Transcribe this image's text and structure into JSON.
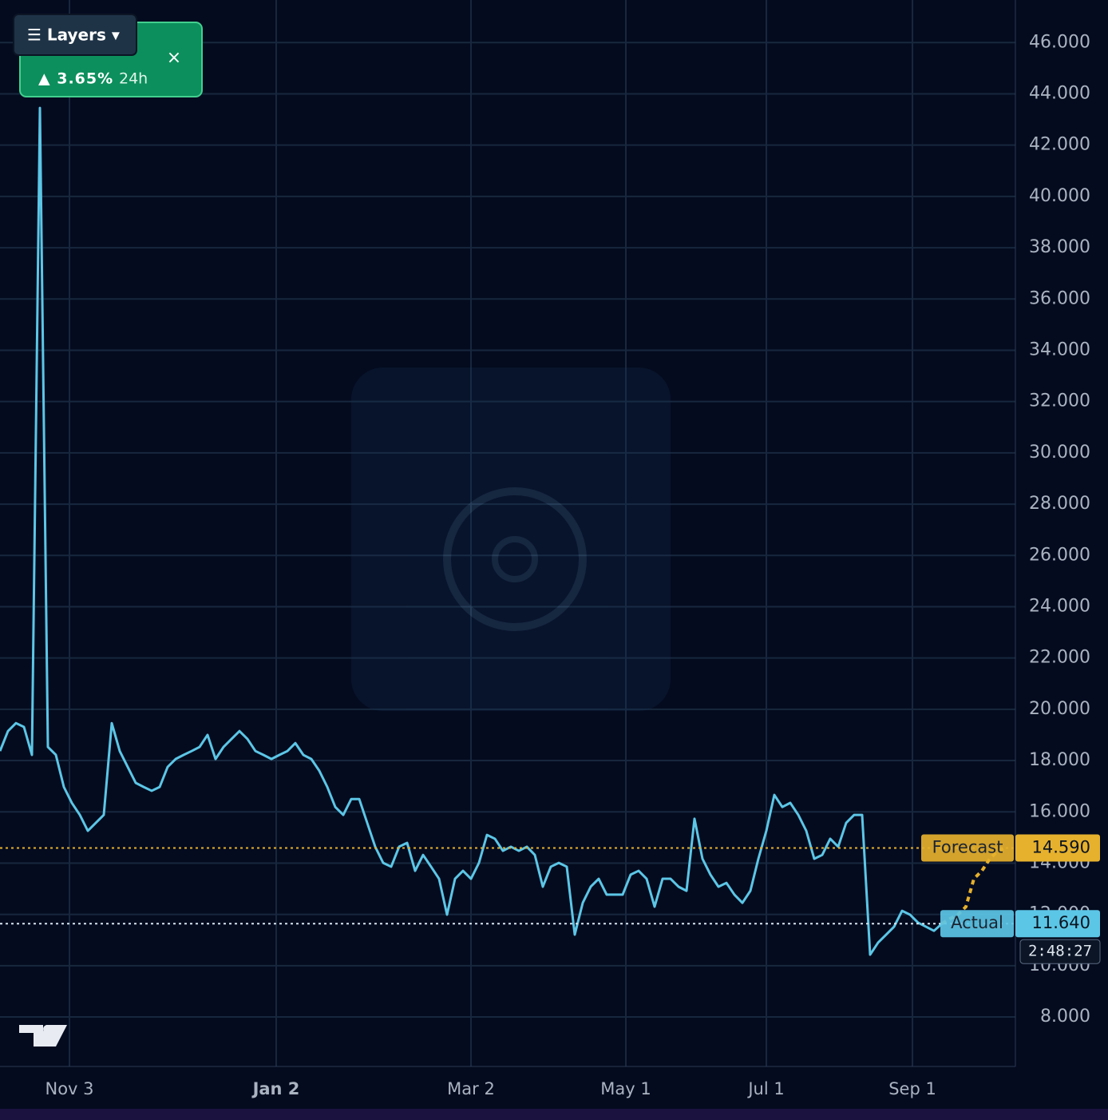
{
  "chart_data": {
    "type": "line",
    "xlim": [
      0,
      127.2
    ],
    "xticks": [
      {
        "value": 8.7,
        "label": "Nov 3"
      },
      {
        "value": 34.6,
        "label": "Jan 2"
      },
      {
        "value": 59.0,
        "label": "Mar 2"
      },
      {
        "value": 78.4,
        "label": "May 1"
      },
      {
        "value": 96.0,
        "label": "Jul 1"
      },
      {
        "value": 114.3,
        "label": "Sep 1"
      }
    ],
    "ylim": [
      6.07,
      47.66
    ],
    "yticks": [
      {
        "value": 8,
        "label": "8.000"
      },
      {
        "value": 10,
        "label": "10.000"
      },
      {
        "value": 12,
        "label": "12.000"
      },
      {
        "value": 14,
        "label": "14.000"
      },
      {
        "value": 16,
        "label": "16.000"
      },
      {
        "value": 18,
        "label": "18.000"
      },
      {
        "value": 20,
        "label": "20.000"
      },
      {
        "value": 22,
        "label": "22.000"
      },
      {
        "value": 24,
        "label": "24.000"
      },
      {
        "value": 26,
        "label": "26.000"
      },
      {
        "value": 28,
        "label": "28.000"
      },
      {
        "value": 30,
        "label": "30.000"
      },
      {
        "value": 32,
        "label": "32.000"
      },
      {
        "value": 34,
        "label": "34.000"
      },
      {
        "value": 36,
        "label": "36.000"
      },
      {
        "value": 38,
        "label": "38.000"
      },
      {
        "value": 40,
        "label": "40.000"
      },
      {
        "value": 42,
        "label": "42.000"
      },
      {
        "value": 44,
        "label": "44.000"
      },
      {
        "value": 46,
        "label": "46.000"
      }
    ],
    "grid": true,
    "series": [
      {
        "name": "Actual",
        "color": "#5cc6e6",
        "values": [
          18.37,
          19.15,
          19.46,
          19.31,
          18.22,
          43.45,
          18.53,
          18.22,
          16.97,
          16.35,
          15.88,
          15.26,
          15.57,
          15.88,
          19.46,
          18.37,
          17.75,
          17.13,
          16.97,
          16.82,
          16.97,
          17.75,
          18.06,
          18.22,
          18.37,
          18.53,
          19.0,
          18.06,
          18.53,
          18.84,
          19.15,
          18.84,
          18.37,
          18.22,
          18.06,
          18.22,
          18.37,
          18.68,
          18.22,
          18.06,
          17.6,
          16.97,
          16.19,
          15.88,
          16.5,
          16.5,
          15.57,
          14.64,
          14.01,
          13.86,
          14.64,
          14.79,
          13.7,
          14.32,
          13.86,
          13.39,
          11.99,
          13.39,
          13.7,
          13.39,
          14.01,
          15.1,
          14.95,
          14.48,
          14.64,
          14.48,
          14.64,
          14.32,
          13.08,
          13.86,
          14.01,
          13.86,
          11.21,
          12.45,
          13.08,
          13.39,
          12.77,
          12.77,
          12.77,
          13.55,
          13.7,
          13.39,
          12.3,
          13.39,
          13.39,
          13.08,
          12.92,
          15.73,
          14.17,
          13.55,
          13.08,
          13.23,
          12.77,
          12.45,
          12.92,
          14.17,
          15.26,
          16.66,
          16.19,
          16.35,
          15.88,
          15.26,
          14.17,
          14.32,
          14.95,
          14.64,
          15.57,
          15.88,
          15.88,
          10.43,
          10.9,
          11.21,
          11.52,
          12.14,
          11.99,
          11.68,
          11.52,
          11.36,
          11.64,
          null,
          null,
          null,
          null,
          null,
          null,
          null,
          null
        ]
      },
      {
        "name": "Forecast",
        "color": "#e6b12c",
        "values": [
          null,
          null,
          null,
          null,
          null,
          null,
          null,
          null,
          null,
          null,
          null,
          null,
          null,
          null,
          null,
          null,
          null,
          null,
          null,
          null,
          null,
          null,
          null,
          null,
          null,
          null,
          null,
          null,
          null,
          null,
          null,
          null,
          null,
          null,
          null,
          null,
          null,
          null,
          null,
          null,
          null,
          null,
          null,
          null,
          null,
          null,
          null,
          null,
          null,
          null,
          null,
          null,
          null,
          null,
          null,
          null,
          null,
          null,
          null,
          null,
          null,
          null,
          null,
          null,
          null,
          null,
          null,
          null,
          null,
          null,
          null,
          null,
          null,
          null,
          null,
          null,
          null,
          null,
          null,
          null,
          null,
          null,
          null,
          null,
          null,
          null,
          null,
          null,
          null,
          null,
          null,
          null,
          null,
          null,
          null,
          null,
          null,
          null,
          null,
          null,
          null,
          null,
          null,
          null,
          null,
          null,
          null,
          null,
          null,
          null,
          null,
          null,
          null,
          null,
          null,
          null,
          null,
          null,
          11.64,
          11.83,
          11.99,
          12.3,
          13.39,
          13.7,
          14.17,
          14.48,
          14.59
        ]
      }
    ],
    "price_lines": [
      {
        "name": "Forecast",
        "value": 14.59,
        "label": "14.590",
        "color": "#e6b12c"
      },
      {
        "name": "Actual",
        "value": 11.64,
        "label": "11.640",
        "color": "#5cc6e6"
      }
    ],
    "countdown": "2:48:27"
  },
  "ui": {
    "layers_button": "☰ Layers ▾",
    "change": "▲ 3.65%",
    "period": "24h",
    "close": "×"
  }
}
